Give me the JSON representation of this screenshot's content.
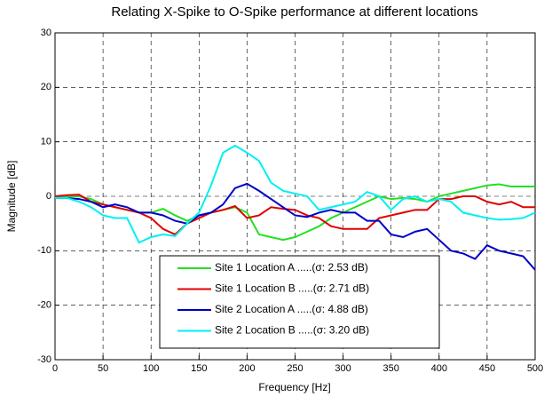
{
  "chart_data": {
    "type": "line",
    "title": "Relating X-Spike to O-Spike performance at different locations",
    "x_label": "Frequency [Hz]",
    "y_label": "Magnitude [dB]",
    "x": [
      0,
      12.5,
      25,
      37.5,
      50,
      62.5,
      75,
      87.5,
      100,
      112.5,
      125,
      137.5,
      150,
      162.5,
      175,
      187.5,
      200,
      212.5,
      225,
      237.5,
      250,
      262.5,
      275,
      287.5,
      300,
      312.5,
      325,
      337.5,
      350,
      362.5,
      375,
      387.5,
      400,
      412.5,
      425,
      437.5,
      450,
      462.5,
      475,
      487.5,
      500
    ],
    "series": [
      {
        "name": "Site 1 Location A .....(σ: 2.53 dB)",
        "color": "#22e022",
        "values": [
          0,
          0,
          0,
          -0.5,
          -1.5,
          -2,
          -2.5,
          -3,
          -3,
          -2.3,
          -3.5,
          -4.5,
          -3.5,
          -3,
          -2.5,
          -2,
          -3,
          -7,
          -7.5,
          -8,
          -7.5,
          -6.5,
          -5.5,
          -4,
          -3,
          -2,
          -1,
          0,
          -0.5,
          -0.3,
          -0.5,
          -1,
          0,
          0.5,
          1,
          1.5,
          2,
          2.2,
          1.8,
          1.8,
          1.8
        ]
      },
      {
        "name": "Site 1 Location B .....(σ: 2.71 dB)",
        "color": "#e00000",
        "values": [
          0,
          0.2,
          0.3,
          -1,
          -1.5,
          -2,
          -2.5,
          -3,
          -4,
          -6,
          -7,
          -5,
          -4,
          -3,
          -2.5,
          -1.8,
          -4,
          -3.5,
          -2,
          -2.3,
          -2.5,
          -3.5,
          -4,
          -5.5,
          -6,
          -6,
          -6,
          -4,
          -3.5,
          -3,
          -2.5,
          -2.5,
          -0.5,
          -0.5,
          0,
          0,
          -1,
          -1.5,
          -1,
          -2,
          -2
        ]
      },
      {
        "name": "Site 2 Location A .....(σ: 4.88 dB)",
        "color": "#0000c8",
        "values": [
          -0.3,
          -0.3,
          -0.5,
          -1,
          -2,
          -1.5,
          -2,
          -3,
          -3,
          -3.5,
          -4.5,
          -5,
          -3.5,
          -3,
          -1.5,
          1.5,
          2.3,
          1,
          -0.5,
          -2,
          -3.5,
          -3.8,
          -3,
          -2.5,
          -3,
          -3,
          -4.5,
          -4.5,
          -7,
          -7.5,
          -6.5,
          -6,
          -8,
          -10,
          -10.5,
          -11.5,
          -9,
          -10,
          -10.5,
          -11,
          -13.5
        ]
      },
      {
        "name": "Site 2 Location B .....(σ: 3.20 dB)",
        "color": "#00f0f0",
        "values": [
          -0.3,
          -0.3,
          -1,
          -2,
          -3.5,
          -4,
          -4,
          -8.5,
          -7.5,
          -7,
          -7.3,
          -5,
          -3,
          2,
          8,
          9.3,
          8,
          6.5,
          2.5,
          1,
          0.5,
          0,
          -2.5,
          -2,
          -1.5,
          -1,
          0.8,
          0,
          -2.5,
          -0.5,
          0,
          -1,
          -0.5,
          -1,
          -3,
          -3.5,
          -4,
          -4.3,
          -4.2,
          -4,
          -3
        ]
      }
    ],
    "xlim": [
      0,
      500
    ],
    "xticks": [
      0,
      50,
      100,
      150,
      200,
      250,
      300,
      350,
      400,
      450,
      500
    ],
    "ylim": [
      -30,
      30
    ],
    "yticks": [
      -30,
      -20,
      -10,
      0,
      10,
      20,
      30
    ],
    "grid": true,
    "legend": "lower center"
  }
}
